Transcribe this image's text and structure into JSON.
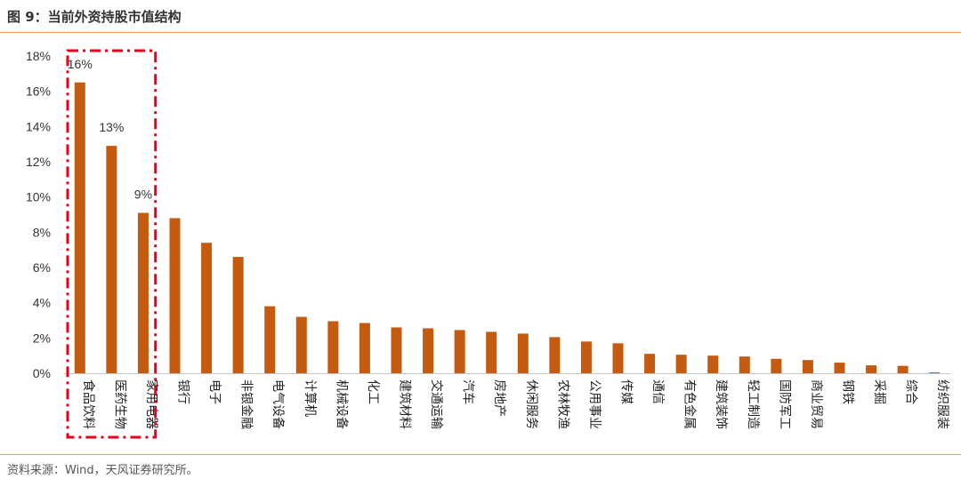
{
  "figure": {
    "title": "图 9：当前外资持股市值结构",
    "source": "资料来源：Wind，天风证券研究所。"
  },
  "colors": {
    "bar": "#c55a11",
    "highlight_box": "#e8001c",
    "rule": "#e8a06a",
    "text": "#333333"
  },
  "chart_data": {
    "type": "bar",
    "title": "",
    "xlabel": "",
    "ylabel": "",
    "ylim": [
      0,
      18
    ],
    "yticks": [
      "0%",
      "2%",
      "4%",
      "6%",
      "8%",
      "10%",
      "12%",
      "14%",
      "16%",
      "18%"
    ],
    "grid": false,
    "legend": "none",
    "categories": [
      "食品饮料",
      "医药生物",
      "家用电器",
      "银行",
      "电子",
      "非银金融",
      "电气设备",
      "计算机",
      "机械设备",
      "化工",
      "建筑材料",
      "交通运输",
      "汽车",
      "房地产",
      "休闲服务",
      "农林牧渔",
      "公用事业",
      "传媒",
      "通信",
      "有色金属",
      "建筑装饰",
      "轻工制造",
      "国防军工",
      "商业贸易",
      "钢铁",
      "采掘",
      "综合",
      "纺织服装"
    ],
    "values": [
      16.5,
      12.9,
      9.1,
      8.8,
      7.4,
      6.6,
      3.8,
      3.2,
      2.95,
      2.85,
      2.6,
      2.55,
      2.45,
      2.35,
      2.25,
      2.05,
      1.8,
      1.7,
      1.1,
      1.05,
      1.0,
      0.95,
      0.82,
      0.75,
      0.6,
      0.45,
      0.42,
      0.05
    ],
    "data_labels": [
      {
        "index": 0,
        "text": "16%"
      },
      {
        "index": 1,
        "text": "13%"
      },
      {
        "index": 2,
        "text": "9%"
      }
    ],
    "highlight_range": [
      0,
      2
    ]
  }
}
